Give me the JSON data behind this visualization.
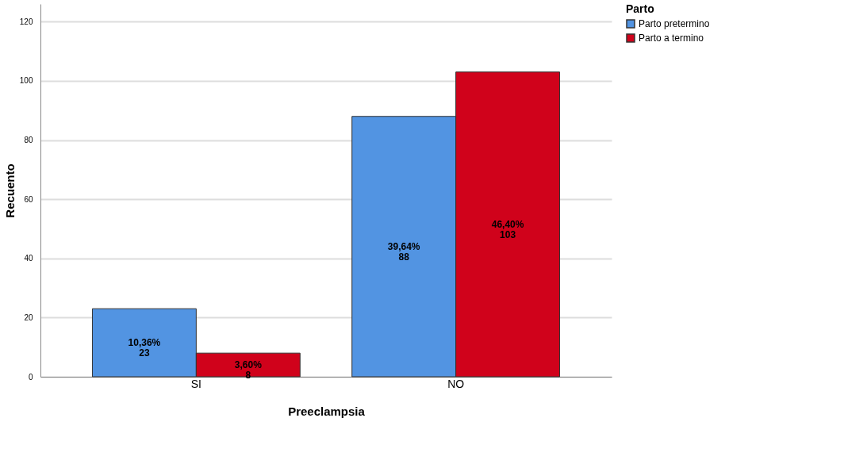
{
  "chart_data": {
    "type": "bar",
    "xlabel": "Preeclampsia",
    "ylabel": "Recuento",
    "legend_title": "Parto",
    "categories": [
      "SI",
      "NO"
    ],
    "series": [
      {
        "name": "Parto pretermino",
        "color": "#5294e2",
        "values": [
          23,
          88
        ],
        "value_labels": [
          "10,36%\n23",
          "39,64%\n88"
        ]
      },
      {
        "name": "Parto a termino",
        "color": "#d0021b",
        "values": [
          8,
          103
        ],
        "value_labels": [
          "3,60%\n8",
          "46,40%\n103"
        ]
      }
    ],
    "ylim": [
      0,
      126
    ],
    "yticks": [
      0,
      20,
      40,
      60,
      80,
      100,
      120
    ],
    "grid": "y",
    "legend": "top right"
  }
}
